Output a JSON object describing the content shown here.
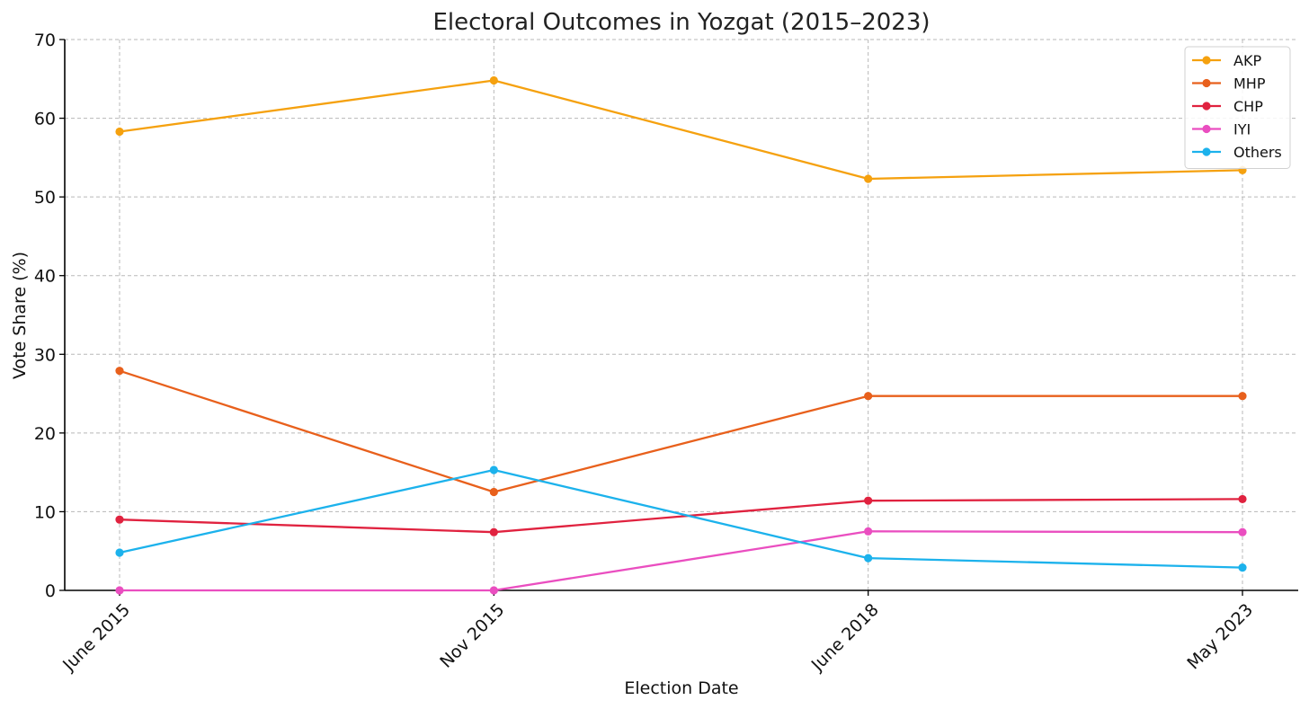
{
  "chart_data": {
    "type": "line",
    "title": "Electoral Outcomes in Yozgat (2015–2023)",
    "xlabel": "Election Date",
    "ylabel": "Vote Share (%)",
    "categories": [
      "June 2015",
      "Nov 2015",
      "June 2018",
      "May 2023"
    ],
    "ylim": [
      0,
      70
    ],
    "yticks": [
      0,
      10,
      20,
      30,
      40,
      50,
      60,
      70
    ],
    "grid": true,
    "legend_position": "top-right",
    "series": [
      {
        "name": "AKP",
        "color": "#f5a10f",
        "values": [
          58.3,
          64.8,
          52.3,
          53.4
        ]
      },
      {
        "name": "MHP",
        "color": "#e8601c",
        "values": [
          27.9,
          12.5,
          24.7,
          24.7
        ]
      },
      {
        "name": "CHP",
        "color": "#e0223f",
        "values": [
          9.0,
          7.4,
          11.4,
          11.6
        ]
      },
      {
        "name": "IYI",
        "color": "#ea4ec0",
        "values": [
          0,
          0,
          7.5,
          7.4
        ]
      },
      {
        "name": "Others",
        "color": "#1cb2ec",
        "values": [
          4.8,
          15.3,
          4.1,
          2.9
        ]
      }
    ]
  }
}
